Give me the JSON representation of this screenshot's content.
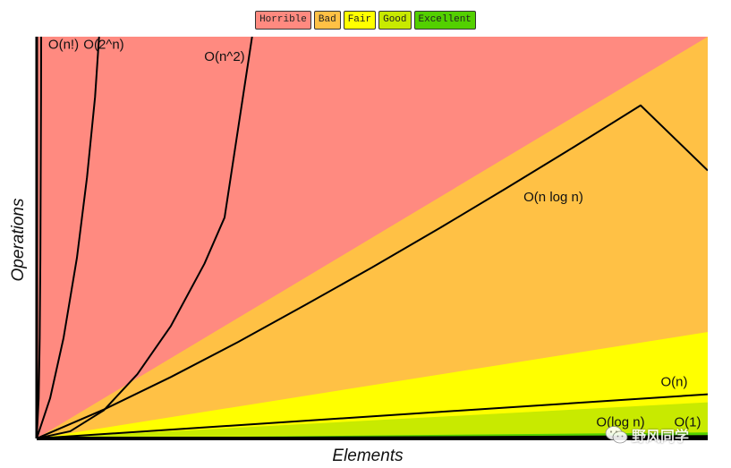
{
  "chart_data": {
    "type": "area",
    "title": "",
    "xlabel": "Elements",
    "ylabel": "Operations",
    "xlim": [
      0,
      100
    ],
    "ylim": [
      0,
      100
    ],
    "grid": false,
    "legend": {
      "placement": "top-center",
      "entries": [
        {
          "label": "Horrible",
          "color": "#ff8a80"
        },
        {
          "label": "Bad",
          "color": "#ffc145"
        },
        {
          "label": "Fair",
          "color": "#ffff00"
        },
        {
          "label": "Good",
          "color": "#c8ea00"
        },
        {
          "label": "Excellent",
          "color": "#53d000"
        }
      ]
    },
    "regions": [
      {
        "label": "Horrible",
        "color": "#ff8a80"
      },
      {
        "label": "Bad",
        "color": "#ffc145",
        "upper_boundary": [
          [
            0,
            0
          ],
          [
            100,
            100
          ]
        ]
      },
      {
        "label": "Fair",
        "color": "#ffff00",
        "upper_boundary": [
          [
            0,
            0
          ],
          [
            100,
            26.5
          ]
        ]
      },
      {
        "label": "Good",
        "color": "#c8ea00",
        "upper_boundary": [
          [
            0,
            0
          ],
          [
            100,
            9.0
          ]
        ]
      },
      {
        "label": "Excellent",
        "color": "#53d000",
        "upper_boundary": [
          [
            0,
            0
          ],
          [
            100,
            1.5
          ]
        ]
      }
    ],
    "series": [
      {
        "name": "O(n!)",
        "points": [
          [
            0,
            0
          ],
          [
            0.3,
            10
          ],
          [
            0.45,
            25
          ],
          [
            0.55,
            45
          ],
          [
            0.6,
            65
          ],
          [
            0.65,
            85
          ],
          [
            0.67,
            100
          ]
        ]
      },
      {
        "name": "O(2^n)",
        "points": [
          [
            0,
            0
          ],
          [
            2,
            10
          ],
          [
            4,
            25
          ],
          [
            6,
            45
          ],
          [
            7.5,
            65
          ],
          [
            8.7,
            85
          ],
          [
            9.3,
            100
          ]
        ]
      },
      {
        "name": "O(n^2)",
        "points": [
          [
            0,
            0
          ],
          [
            5,
            1.8
          ],
          [
            10,
            7
          ],
          [
            15,
            16
          ],
          [
            20,
            28
          ],
          [
            25,
            43.5
          ],
          [
            28,
            55
          ],
          [
            32.1,
            100
          ]
        ]
      },
      {
        "name": "O(n log n)",
        "points": [
          [
            0,
            0
          ],
          [
            10,
            7.2
          ],
          [
            20,
            15.3
          ],
          [
            30,
            24
          ],
          [
            40,
            33.2
          ],
          [
            50,
            42.6
          ],
          [
            60,
            52.3
          ],
          [
            70,
            62.3
          ],
          [
            80,
            72.5
          ],
          [
            90,
            82.9
          ],
          [
            100,
            66.7
          ]
        ]
      },
      {
        "name": "O(n)",
        "points": [
          [
            0,
            0
          ],
          [
            100,
            11
          ]
        ]
      },
      {
        "name": "O(log n)",
        "points": [
          [
            0,
            0
          ],
          [
            100,
            0.6
          ]
        ]
      },
      {
        "name": "O(1)",
        "points": [
          [
            0,
            0.1
          ],
          [
            100,
            0.1
          ]
        ]
      }
    ],
    "annotations": [
      {
        "text": "O(n!)",
        "x": 4,
        "y": 97
      },
      {
        "text": "O(2^n)",
        "x": 10,
        "y": 97
      },
      {
        "text": "O(n^2)",
        "x": 28,
        "y": 94
      },
      {
        "text": "O(n log n)",
        "x": 77,
        "y": 59
      },
      {
        "text": "O(n)",
        "x": 95,
        "y": 13
      },
      {
        "text": "O(log n)",
        "x": 87,
        "y": 3
      },
      {
        "text": "O(1)",
        "x": 97,
        "y": 3
      }
    ]
  },
  "watermark": {
    "text": "野风同学",
    "icon": "wechat-icon"
  }
}
